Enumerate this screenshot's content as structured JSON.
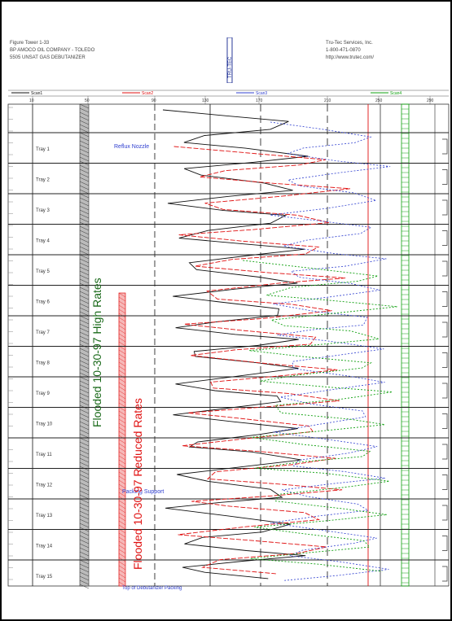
{
  "header": {
    "left_lines": [
      "Figure Tower 1-33",
      "BP AMOCO OIL COMPANY - TOLEDO",
      "5505 UNSAT GAS DEBUTANIZER"
    ],
    "right_lines": [
      "Tru-Tec Services, Inc.",
      "1-800-471-0870",
      "http://www.trutec.com/"
    ],
    "logo_text": "TRU-TEC"
  },
  "chart_data": {
    "type": "line",
    "title": "",
    "xlabel": "",
    "ylabel": "",
    "x_ticks": [
      "10",
      "50",
      "90",
      "130",
      "170",
      "210",
      "250",
      "290"
    ],
    "legend": [
      "Scan1",
      "Scan2",
      "Scan3",
      "Scan4"
    ],
    "tray_labels": [
      "Tray 1",
      "Tray 2",
      "Tray 3",
      "Tray 4",
      "Tray 5",
      "Tray 6",
      "Tray 7",
      "Tray 8",
      "Tray 9",
      "Tray 10",
      "Tray 11",
      "Tray 12",
      "Tray 13",
      "Tray 14",
      "Tray 15"
    ],
    "annotations": {
      "reflux": "Reflux Nozzle",
      "support": "Packing Support",
      "bottom": "Top of Debutanizer Packing",
      "flood_high": "Flooded 10-30-97 High Rates",
      "flood_reduced": "Flooded 10-30-97 Reduced Rates"
    },
    "colors": {
      "scan1": "#111111",
      "scan2": "#e01010",
      "scan3": "#3040d0",
      "scan4": "#10a010",
      "flood_high": "#1a6a1a",
      "flood_reduced": "#e01010"
    }
  }
}
